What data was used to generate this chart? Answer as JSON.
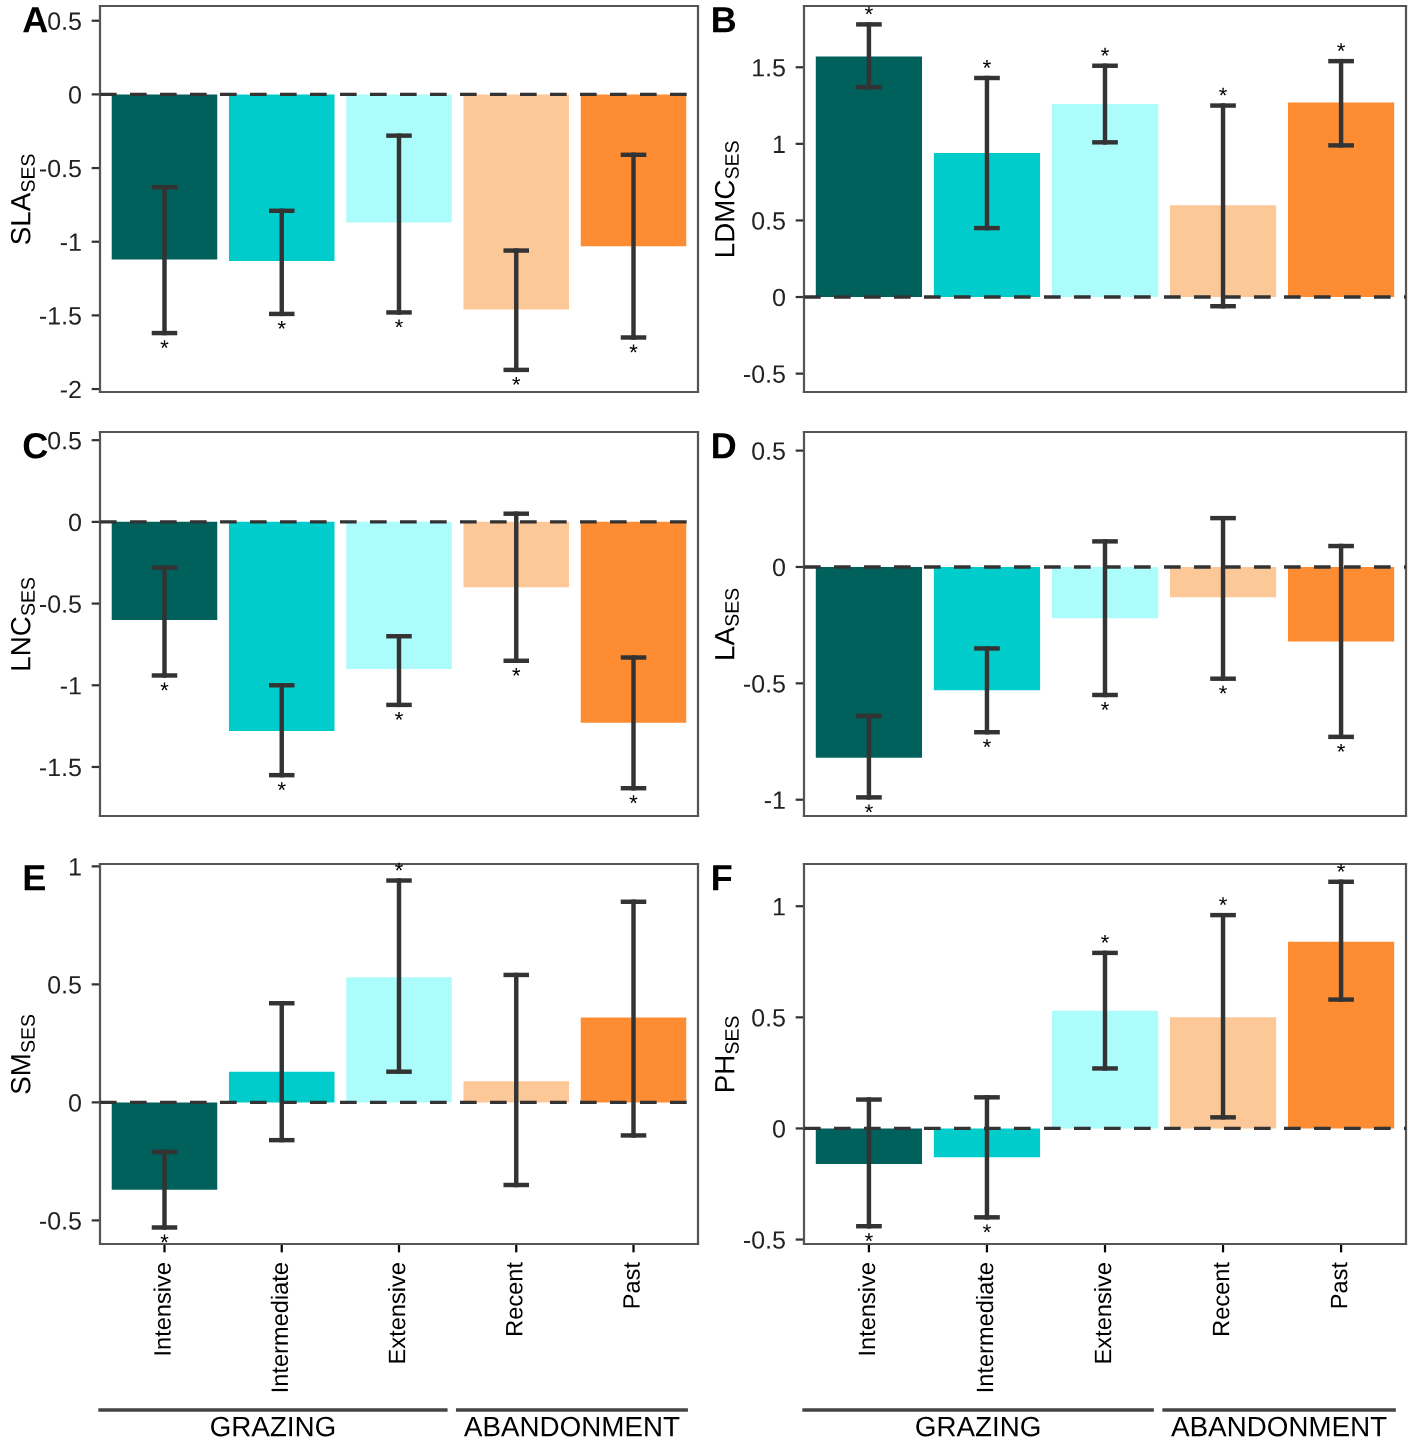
{
  "chart_data": [
    {
      "type": "bar",
      "title": "A",
      "ylabel": "SLA$_{SES}$",
      "categories": [
        "Intensive",
        "Intermediate",
        "Extensive",
        "Recent",
        "Past"
      ],
      "colors": [
        "#00605c",
        "#00cccc",
        "#adfcfc",
        "#fdc897",
        "#fd8c32"
      ],
      "values": [
        -1.12,
        -1.13,
        -0.87,
        -1.46,
        -1.03
      ],
      "errors": [
        [
          -1.62,
          -0.63
        ],
        [
          -1.49,
          -0.79
        ],
        [
          -1.48,
          -0.28
        ],
        [
          -1.87,
          -1.06
        ],
        [
          -1.65,
          -0.41
        ]
      ],
      "ylim": [
        -2.02,
        0.6
      ],
      "yticks": [
        -2,
        -1.5,
        -1,
        -0.5,
        0,
        0.5
      ],
      "tick_labels": "y",
      "grid": false,
      "ref_lines": [
        {
          "axis": "y",
          "value": 0,
          "line_style": "dashed",
          "color": "#333333"
        }
      ],
      "annotations": [
        {
          "text": "*",
          "x": "Intensive",
          "y": -1.62
        },
        {
          "text": "*",
          "x": "Intermediate",
          "y": -1.49
        },
        {
          "text": "*",
          "x": "Extensive",
          "y": -1.48
        },
        {
          "text": "*",
          "x": "Recent",
          "y": -1.87
        },
        {
          "text": "*",
          "x": "Past",
          "y": -1.65
        }
      ]
    },
    {
      "type": "bar",
      "title": "B",
      "ylabel": "LDMC$_{SES}$",
      "categories": [
        "Intensive",
        "Intermediate",
        "Extensive",
        "Recent",
        "Past"
      ],
      "colors": [
        "#00605c",
        "#00cccc",
        "#adfcfc",
        "#fdc897",
        "#fd8c32"
      ],
      "values": [
        1.57,
        0.94,
        1.26,
        0.6,
        1.27
      ],
      "errors": [
        [
          1.37,
          1.78
        ],
        [
          0.45,
          1.43
        ],
        [
          1.01,
          1.51
        ],
        [
          -0.06,
          1.25
        ],
        [
          0.99,
          1.54
        ]
      ],
      "ylim": [
        -0.62,
        1.9
      ],
      "yticks": [
        -0.5,
        0,
        0.5,
        1,
        1.5
      ],
      "tick_labels": "y",
      "grid": false,
      "ref_lines": [
        {
          "axis": "y",
          "value": 0,
          "line_style": "dashed",
          "color": "#333333"
        }
      ],
      "annotations": [
        {
          "text": "*",
          "x": "Intensive",
          "y": 1.78
        },
        {
          "text": "*",
          "x": "Intermediate",
          "y": 1.43
        },
        {
          "text": "*",
          "x": "Extensive",
          "y": 1.51
        },
        {
          "text": "*",
          "x": "Recent",
          "y": 1.25
        },
        {
          "text": "*",
          "x": "Past",
          "y": 1.54
        }
      ]
    },
    {
      "type": "bar",
      "title": "C",
      "ylabel": "LNC$_{SES}$",
      "categories": [
        "Intensive",
        "Intermediate",
        "Extensive",
        "Recent",
        "Past"
      ],
      "colors": [
        "#00605c",
        "#00cccc",
        "#adfcfc",
        "#fdc897",
        "#fd8c32"
      ],
      "values": [
        -0.6,
        -1.28,
        -0.9,
        -0.4,
        -1.23
      ],
      "errors": [
        [
          -0.94,
          -0.28
        ],
        [
          -1.55,
          -1.0
        ],
        [
          -1.12,
          -0.7
        ],
        [
          -0.85,
          0.05
        ],
        [
          -1.63,
          -0.83
        ]
      ],
      "ylim": [
        -1.8,
        0.55
      ],
      "yticks": [
        -1.5,
        -1,
        -0.5,
        0,
        0.5
      ],
      "tick_labels": "y",
      "grid": false,
      "ref_lines": [
        {
          "axis": "y",
          "value": 0,
          "line_style": "dashed",
          "color": "#333333"
        }
      ],
      "annotations": [
        {
          "text": "*",
          "x": "Intensive",
          "y": -0.94
        },
        {
          "text": "*",
          "x": "Intermediate",
          "y": -1.55
        },
        {
          "text": "*",
          "x": "Extensive",
          "y": -1.12
        },
        {
          "text": "*",
          "x": "Recent",
          "y": -0.85
        },
        {
          "text": "*",
          "x": "Past",
          "y": -1.63
        }
      ]
    },
    {
      "type": "bar",
      "title": "D",
      "ylabel": "LA$_{SES}$",
      "categories": [
        "Intensive",
        "Intermediate",
        "Extensive",
        "Recent",
        "Past"
      ],
      "colors": [
        "#00605c",
        "#00cccc",
        "#adfcfc",
        "#fdc897",
        "#fd8c32"
      ],
      "values": [
        -0.82,
        -0.53,
        -0.22,
        -0.13,
        -0.32
      ],
      "errors": [
        [
          -0.99,
          -0.64
        ],
        [
          -0.71,
          -0.35
        ],
        [
          -0.55,
          0.11
        ],
        [
          -0.48,
          0.21
        ],
        [
          -0.73,
          0.09
        ]
      ],
      "ylim": [
        -1.07,
        0.58
      ],
      "yticks": [
        -1,
        -0.5,
        0,
        0.5
      ],
      "tick_labels": "y",
      "grid": false,
      "ref_lines": [
        {
          "axis": "y",
          "value": 0,
          "line_style": "dashed",
          "color": "#333333"
        }
      ],
      "annotations": [
        {
          "text": "*",
          "x": "Intensive",
          "y": -0.99
        },
        {
          "text": "*",
          "x": "Intermediate",
          "y": -0.71
        },
        {
          "text": "*",
          "x": "Extensive",
          "y": -0.55
        },
        {
          "text": "*",
          "x": "Recent",
          "y": -0.48
        },
        {
          "text": "*",
          "x": "Past",
          "y": -0.73
        }
      ]
    },
    {
      "type": "bar",
      "title": "E",
      "ylabel": "SM$_{SES}$",
      "categories": [
        "Intensive",
        "Intermediate",
        "Extensive",
        "Recent",
        "Past"
      ],
      "colors": [
        "#00605c",
        "#00cccc",
        "#adfcfc",
        "#fdc897",
        "#fd8c32"
      ],
      "values": [
        -0.37,
        0.13,
        0.53,
        0.09,
        0.36
      ],
      "errors": [
        [
          -0.53,
          -0.21
        ],
        [
          -0.16,
          0.42
        ],
        [
          0.13,
          0.94
        ],
        [
          -0.35,
          0.54
        ],
        [
          -0.14,
          0.85
        ]
      ],
      "ylim": [
        -0.6,
        1.01
      ],
      "yticks": [
        -0.5,
        0,
        0.5,
        1
      ],
      "grid": false,
      "ref_lines": [
        {
          "axis": "y",
          "value": 0,
          "line_style": "dashed",
          "color": "#333333"
        }
      ],
      "annotations": [
        {
          "text": "*",
          "x": "Intensive",
          "y": -0.53
        },
        {
          "text": "*",
          "x": "Extensive",
          "y": 0.94
        },
        "GRAZING",
        "ABANDONMENT"
      ]
    },
    {
      "type": "bar",
      "title": "F",
      "ylabel": "PH$_{SES}$",
      "categories": [
        "Intensive",
        "Intermediate",
        "Extensive",
        "Recent",
        "Past"
      ],
      "colors": [
        "#00605c",
        "#00cccc",
        "#adfcfc",
        "#fdc897",
        "#fd8c32"
      ],
      "values": [
        -0.16,
        -0.13,
        0.53,
        0.5,
        0.84
      ],
      "errors": [
        [
          -0.44,
          0.13
        ],
        [
          -0.4,
          0.14
        ],
        [
          0.27,
          0.79
        ],
        [
          0.05,
          0.96
        ],
        [
          0.58,
          1.11
        ]
      ],
      "ylim": [
        -0.52,
        1.19
      ],
      "yticks": [
        -0.5,
        0,
        0.5,
        1
      ],
      "grid": false,
      "ref_lines": [
        {
          "axis": "y",
          "value": 0,
          "line_style": "dashed",
          "color": "#333333"
        }
      ],
      "annotations": [
        {
          "text": "*",
          "x": "Intensive",
          "y": -0.44
        },
        {
          "text": "*",
          "x": "Intermediate",
          "y": -0.4
        },
        {
          "text": "*",
          "x": "Extensive",
          "y": 0.79
        },
        {
          "text": "*",
          "x": "Recent",
          "y": 0.96
        },
        {
          "text": "*",
          "x": "Past",
          "y": 1.11
        },
        "GRAZING",
        "ABANDONMENT"
      ]
    }
  ]
}
